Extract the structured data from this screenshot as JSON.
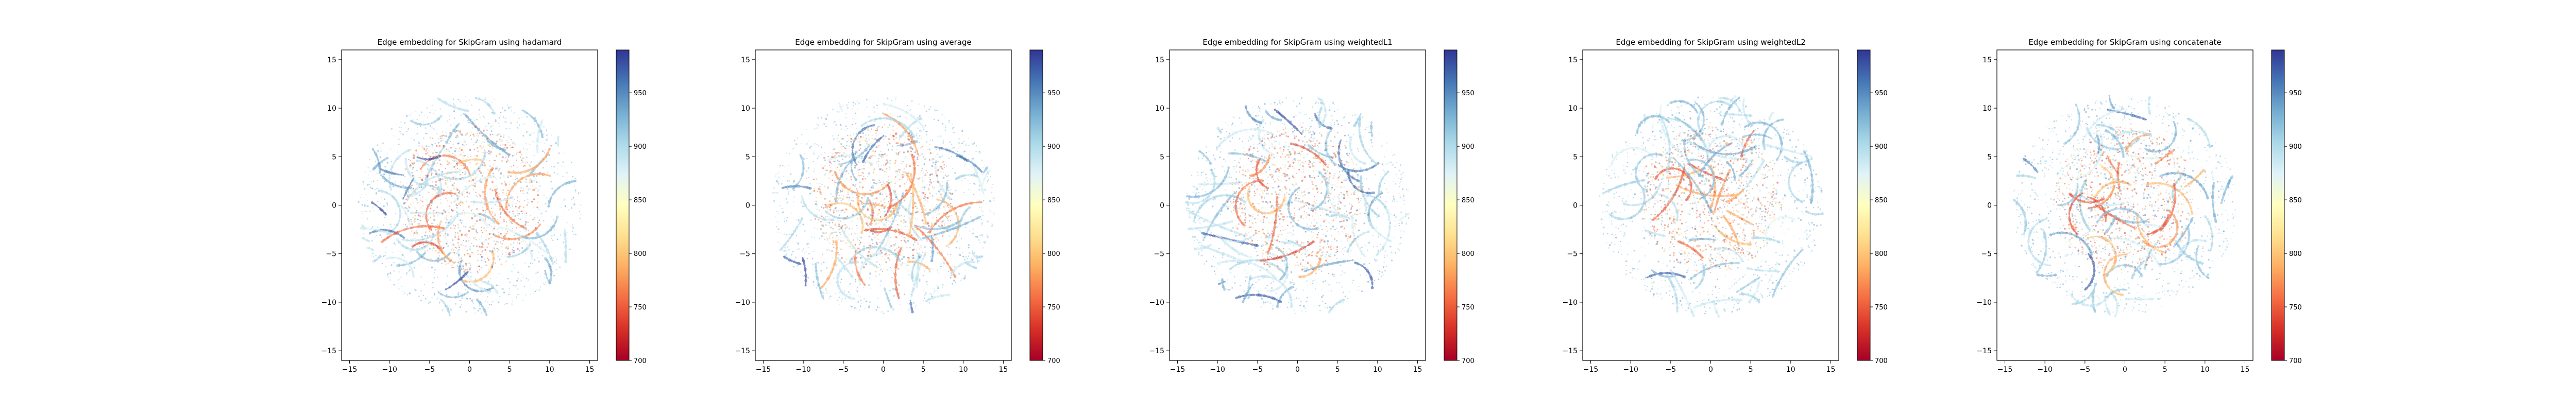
{
  "chart_data": [
    {
      "type": "scatter",
      "title": "Edge embedding for SkipGram using hadamard",
      "xlabel": "",
      "ylabel": "",
      "xlim": [
        -16,
        16
      ],
      "ylim": [
        -16,
        16
      ],
      "xticks": [
        -15,
        -10,
        -5,
        0,
        5,
        10,
        15
      ],
      "yticks": [
        -15,
        -10,
        -5,
        0,
        5,
        10,
        15
      ],
      "grid": false,
      "colorbar": {
        "colormap": "RdYlBu",
        "vmin": 700,
        "vmax": 990,
        "ticks": [
          700,
          750,
          800,
          850,
          900,
          950
        ]
      },
      "series": [
        {
          "description": "point cloud of edge embeddings, roughly circular, radius about 14",
          "center": [
            0,
            0
          ],
          "radius": 14,
          "value_range": [
            700,
            990
          ]
        }
      ]
    },
    {
      "type": "scatter",
      "title": "Edge embedding for SkipGram using average",
      "xlabel": "",
      "ylabel": "",
      "xlim": [
        -16,
        16
      ],
      "ylim": [
        -16,
        16
      ],
      "xticks": [
        -15,
        -10,
        -5,
        0,
        5,
        10,
        15
      ],
      "yticks": [
        -15,
        -10,
        -5,
        0,
        5,
        10,
        15
      ],
      "grid": false,
      "colorbar": {
        "colormap": "RdYlBu",
        "vmin": 700,
        "vmax": 990,
        "ticks": [
          700,
          750,
          800,
          850,
          900,
          950
        ]
      },
      "series": [
        {
          "description": "point cloud of edge embeddings, roughly circular, radius about 14",
          "center": [
            0,
            0
          ],
          "radius": 14,
          "value_range": [
            700,
            990
          ]
        }
      ]
    },
    {
      "type": "scatter",
      "title": "Edge embedding for SkipGram using weightedL1",
      "xlabel": "",
      "ylabel": "",
      "xlim": [
        -16,
        16
      ],
      "ylim": [
        -16,
        16
      ],
      "xticks": [
        -15,
        -10,
        -5,
        0,
        5,
        10,
        15
      ],
      "yticks": [
        -15,
        -10,
        -5,
        0,
        5,
        10,
        15
      ],
      "grid": false,
      "colorbar": {
        "colormap": "RdYlBu",
        "vmin": 700,
        "vmax": 990,
        "ticks": [
          700,
          750,
          800,
          850,
          900,
          950
        ]
      },
      "series": [
        {
          "description": "point cloud of edge embeddings, roughly circular, radius about 14",
          "center": [
            0,
            0
          ],
          "radius": 14,
          "value_range": [
            700,
            990
          ]
        }
      ]
    },
    {
      "type": "scatter",
      "title": "Edge embedding for SkipGram using weightedL2",
      "xlabel": "",
      "ylabel": "",
      "xlim": [
        -16,
        16
      ],
      "ylim": [
        -16,
        16
      ],
      "xticks": [
        -15,
        -10,
        -5,
        0,
        5,
        10,
        15
      ],
      "yticks": [
        -15,
        -10,
        -5,
        0,
        5,
        10,
        15
      ],
      "grid": false,
      "colorbar": {
        "colormap": "RdYlBu",
        "vmin": 700,
        "vmax": 990,
        "ticks": [
          700,
          750,
          800,
          850,
          900,
          950
        ]
      },
      "series": [
        {
          "description": "point cloud of edge embeddings, roughly circular, radius about 14",
          "center": [
            0,
            0
          ],
          "radius": 14,
          "value_range": [
            700,
            990
          ]
        }
      ]
    },
    {
      "type": "scatter",
      "title": "Edge embedding for SkipGram using concatenate",
      "xlabel": "",
      "ylabel": "",
      "xlim": [
        -16,
        16
      ],
      "ylim": [
        -16,
        16
      ],
      "xticks": [
        -15,
        -10,
        -5,
        0,
        5,
        10,
        15
      ],
      "yticks": [
        -15,
        -10,
        -5,
        0,
        5,
        10,
        15
      ],
      "grid": false,
      "colorbar": {
        "colormap": "RdYlBu",
        "vmin": 700,
        "vmax": 990,
        "ticks": [
          700,
          750,
          800,
          850,
          900,
          950
        ]
      },
      "series": [
        {
          "description": "point cloud of edge embeddings, roughly circular, radius about 14",
          "center": [
            0,
            0
          ],
          "radius": 14,
          "value_range": [
            700,
            990
          ]
        }
      ]
    }
  ],
  "colormap_stops": [
    "#a50026",
    "#d73027",
    "#f46d43",
    "#fdae61",
    "#fee090",
    "#ffffbf",
    "#e0f3f8",
    "#abd9e9",
    "#74add1",
    "#4575b4",
    "#313695"
  ]
}
